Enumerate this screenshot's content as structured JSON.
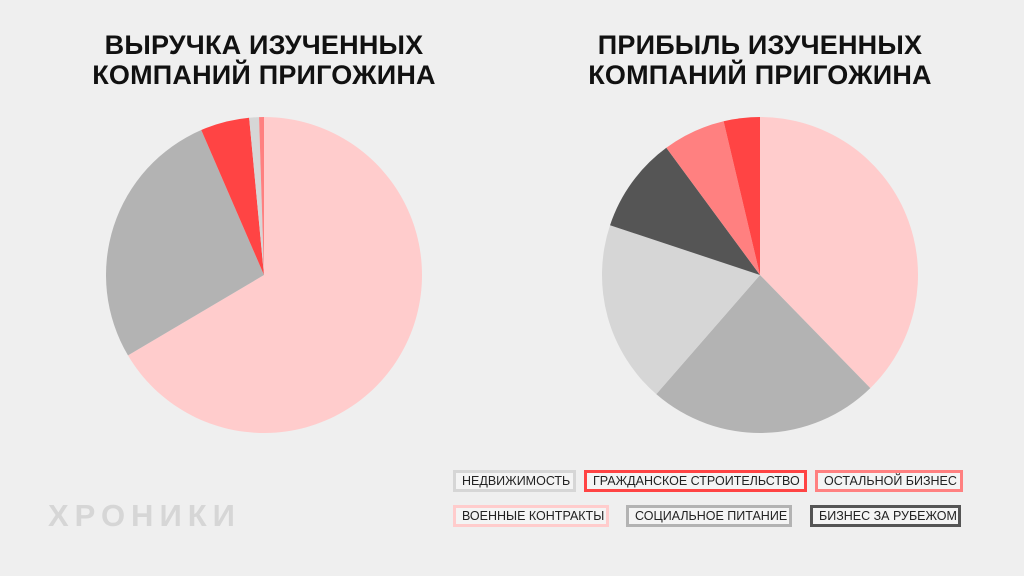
{
  "brand": {
    "watermark": "ХРОНИКИ"
  },
  "legend": [
    {
      "key": "realty",
      "label": "НЕДВИЖИМОСТЬ",
      "color": "#d6d6d6"
    },
    {
      "key": "civil",
      "label": "ГРАЖДАНСКОЕ СТРОИТЕЛЬСТВО",
      "color": "#ff4444"
    },
    {
      "key": "other",
      "label": "ОСТАЛЬНОЙ БИЗНЕС",
      "color": "#ff8080"
    },
    {
      "key": "military",
      "label": "ВОЕННЫЕ КОНТРАКТЫ",
      "color": "#ffcccc"
    },
    {
      "key": "catering",
      "label": "СОЦИАЛЬНОЕ ПИТАНИЕ",
      "color": "#b3b3b3"
    },
    {
      "key": "abroad",
      "label": "БИЗНЕС ЗА РУБЕЖОМ",
      "color": "#555555"
    }
  ],
  "chart_data": [
    {
      "type": "pie",
      "title_lines": [
        "ВЫРУЧКА ИЗУЧЕННЫХ",
        "КОМПАНИЙ ПРИГОЖИНА"
      ],
      "start": "12 o'clock",
      "direction": "clockwise",
      "slices": [
        {
          "key": "military",
          "value": 66.5
        },
        {
          "key": "catering",
          "value": 27.0
        },
        {
          "key": "civil",
          "value": 5.0
        },
        {
          "key": "realty",
          "value": 1.0
        },
        {
          "key": "other",
          "value": 0.5
        }
      ]
    },
    {
      "type": "pie",
      "title_lines": [
        "ПРИБЫЛЬ ИЗУЧЕННЫХ",
        "КОМПАНИЙ ПРИГОЖИНА"
      ],
      "start": "12 o'clock",
      "direction": "clockwise",
      "slices": [
        {
          "key": "military",
          "value": 37.7
        },
        {
          "key": "catering",
          "value": 23.7
        },
        {
          "key": "realty",
          "value": 18.7
        },
        {
          "key": "abroad",
          "value": 9.8
        },
        {
          "key": "other",
          "value": 6.4
        },
        {
          "key": "civil",
          "value": 3.7
        }
      ]
    }
  ]
}
